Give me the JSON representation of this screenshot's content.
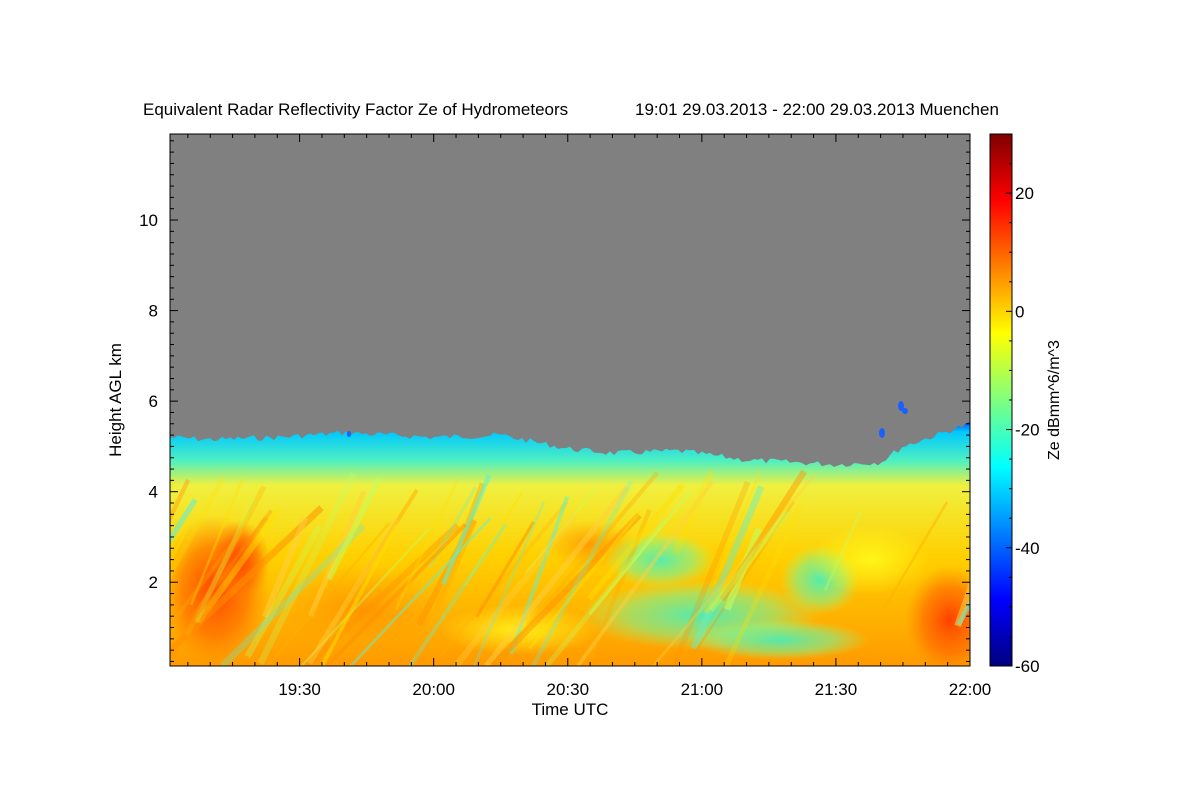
{
  "chart_data": {
    "type": "heatmap",
    "title": "Equivalent Radar Reflectivity Factor Ze of Hydrometeors",
    "time_range_text": "19:01 29.03.2013 - 22:00 29.03.2013 Muenchen",
    "xlabel": "Time UTC",
    "ylabel": "Height AGL km",
    "x_range_minutes": [
      1141,
      1320
    ],
    "x_ticks": [
      {
        "label": "19:30",
        "minutes": 1170
      },
      {
        "label": "20:00",
        "minutes": 1200
      },
      {
        "label": "20:30",
        "minutes": 1230
      },
      {
        "label": "21:00",
        "minutes": 1260
      },
      {
        "label": "21:30",
        "minutes": 1290
      },
      {
        "label": "22:00",
        "minutes": 1320
      }
    ],
    "y_range_km": [
      0.15,
      11.9
    ],
    "y_ticks": [
      {
        "label": "2",
        "value": 2
      },
      {
        "label": "4",
        "value": 4
      },
      {
        "label": "6",
        "value": 6
      },
      {
        "label": "8",
        "value": 8
      },
      {
        "label": "10",
        "value": 10
      }
    ],
    "colorbar": {
      "label": "Ze dBmm^6/m^3",
      "range": [
        -60,
        30
      ],
      "ticks": [
        {
          "label": "20",
          "value": 20
        },
        {
          "label": "0",
          "value": 0
        },
        {
          "label": "-20",
          "value": -20
        },
        {
          "label": "-40",
          "value": -40
        },
        {
          "label": "-60",
          "value": -60
        }
      ],
      "colors": [
        "#00007f",
        "#0000ff",
        "#007fff",
        "#00ffff",
        "#7fff7f",
        "#ffff00",
        "#ff7f00",
        "#ff0000",
        "#7f0000"
      ]
    },
    "no_signal_color": "#808080",
    "cloud_top_km": [
      {
        "minutes": 1141,
        "km": 5.2
      },
      {
        "minutes": 1150,
        "km": 5.15
      },
      {
        "minutes": 1165,
        "km": 5.2
      },
      {
        "minutes": 1180,
        "km": 5.3
      },
      {
        "minutes": 1200,
        "km": 5.2
      },
      {
        "minutes": 1215,
        "km": 5.25
      },
      {
        "minutes": 1230,
        "km": 4.95
      },
      {
        "minutes": 1240,
        "km": 4.85
      },
      {
        "minutes": 1255,
        "km": 4.9
      },
      {
        "minutes": 1270,
        "km": 4.7
      },
      {
        "minutes": 1290,
        "km": 4.6
      },
      {
        "minutes": 1300,
        "km": 4.65
      },
      {
        "minutes": 1305,
        "km": 5.0
      },
      {
        "minutes": 1320,
        "km": 5.5
      }
    ]
  }
}
